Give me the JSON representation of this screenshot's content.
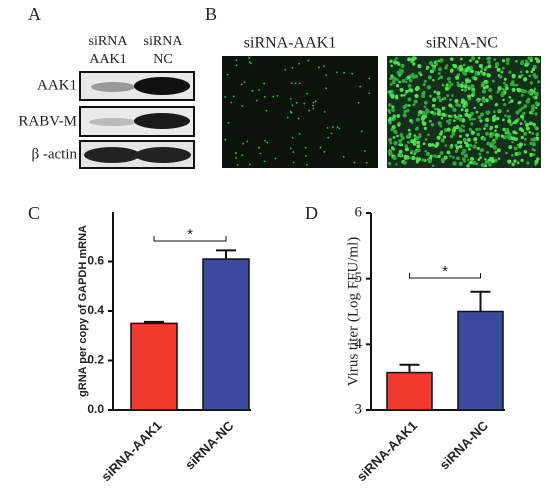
{
  "panel_a": {
    "label": "A",
    "column_labels": [
      [
        "siRNA",
        "AAK1"
      ],
      [
        "siRNA",
        "NC"
      ]
    ],
    "row_labels": [
      "AAK1",
      "RABV-M",
      "β -actin"
    ]
  },
  "panel_b": {
    "label": "B",
    "image_labels": [
      "siRNA-AAK1",
      "siRNA-NC"
    ]
  },
  "chart_data": [
    {
      "type": "bar",
      "panel_label": "C",
      "y_label": "gRNA per copy of GAPDH mRNA",
      "categories": [
        "siRNA-AAK1",
        "siRNA-NC"
      ],
      "values": [
        0.35,
        0.61
      ],
      "errors": [
        0.006,
        0.035
      ],
      "colors": [
        "#f23a2e",
        "#3b4a9a"
      ],
      "ylim": [
        0,
        0.8
      ],
      "yticks": [
        {
          "value": 0,
          "label": "0.0"
        },
        0.2,
        0.4,
        0.6
      ],
      "annotations": [
        "*"
      ]
    },
    {
      "type": "bar",
      "panel_label": "D",
      "y_label": "Virus titer (Log FFU/ml)",
      "categories": [
        "siRNA-AAK1",
        "siRNA-NC"
      ],
      "values": [
        3.57,
        4.5
      ],
      "errors": [
        0.12,
        0.3
      ],
      "colors": [
        "#f23a2e",
        "#3b4a9a"
      ],
      "ylim": [
        3,
        6
      ],
      "yticks": [
        3,
        4,
        5,
        6
      ],
      "annotations": [
        "*"
      ]
    }
  ]
}
